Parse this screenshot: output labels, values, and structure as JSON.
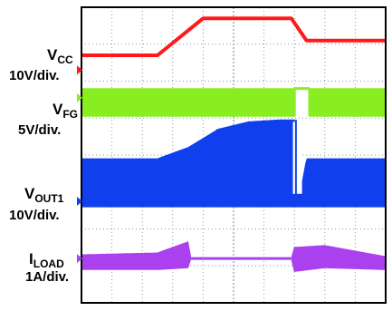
{
  "chart_data": {
    "type": "line",
    "title": "",
    "xlabel": "",
    "ylabel": "",
    "grid": true,
    "colors": {
      "vcc": "#ff1a1a",
      "vfg": "#88ee22",
      "vout1": "#1040ee",
      "iload": "#aa40ee",
      "grid": "#7d9bb5",
      "frame": "#000000"
    },
    "x_divisions": 10,
    "y_divisions": 8,
    "channels": [
      {
        "key": "vcc",
        "label_main": "V",
        "label_sub": "CC",
        "scale": "10V/div."
      },
      {
        "key": "vfg",
        "label_main": "V",
        "label_sub": "FG",
        "scale": "5V/div."
      },
      {
        "key": "vout1",
        "label_main": "V",
        "label_sub": "OUT1",
        "scale": "10V/div."
      },
      {
        "key": "iload",
        "label_main": "I",
        "label_sub": "LOAD",
        "scale": "1A/div."
      }
    ],
    "series": [
      {
        "key": "vcc",
        "x": [
          0,
          2.5,
          4.0,
          6.9,
          7.4,
          10.0
        ],
        "y": [
          6.7,
          6.7,
          7.7,
          7.7,
          7.1,
          7.1
        ]
      },
      {
        "key": "vfg",
        "fill": "switching band",
        "x": [
          0,
          7.0,
          7.5,
          7.5,
          10.0
        ],
        "high": [
          5.8,
          5.8,
          5.8,
          5.8,
          5.8
        ],
        "low": [
          5.05,
          5.05,
          5.05,
          5.05,
          5.05
        ],
        "gap": [
          7.0,
          7.5
        ]
      },
      {
        "key": "vout1",
        "x": [
          0,
          2.5,
          3.5,
          4.5,
          5.5,
          6.5,
          7.0,
          7.2,
          7.4,
          10.0
        ],
        "high": [
          3.9,
          3.9,
          4.2,
          4.7,
          4.9,
          4.95,
          4.95,
          3.0,
          3.9,
          3.9
        ],
        "low": [
          2.6,
          2.6,
          2.6,
          2.6,
          2.6,
          2.6,
          2.6,
          2.6,
          2.6,
          2.6
        ]
      },
      {
        "key": "iload",
        "x": [
          0,
          2.5,
          3.5,
          3.6,
          6.9,
          7.0,
          8.0,
          10.0
        ],
        "high": [
          1.3,
          1.35,
          1.65,
          1.2,
          1.2,
          1.5,
          1.55,
          1.25
        ],
        "low": [
          0.9,
          0.9,
          0.95,
          1.2,
          1.2,
          0.85,
          0.95,
          0.9
        ],
        "gap": [
          3.6,
          6.9
        ]
      }
    ]
  }
}
